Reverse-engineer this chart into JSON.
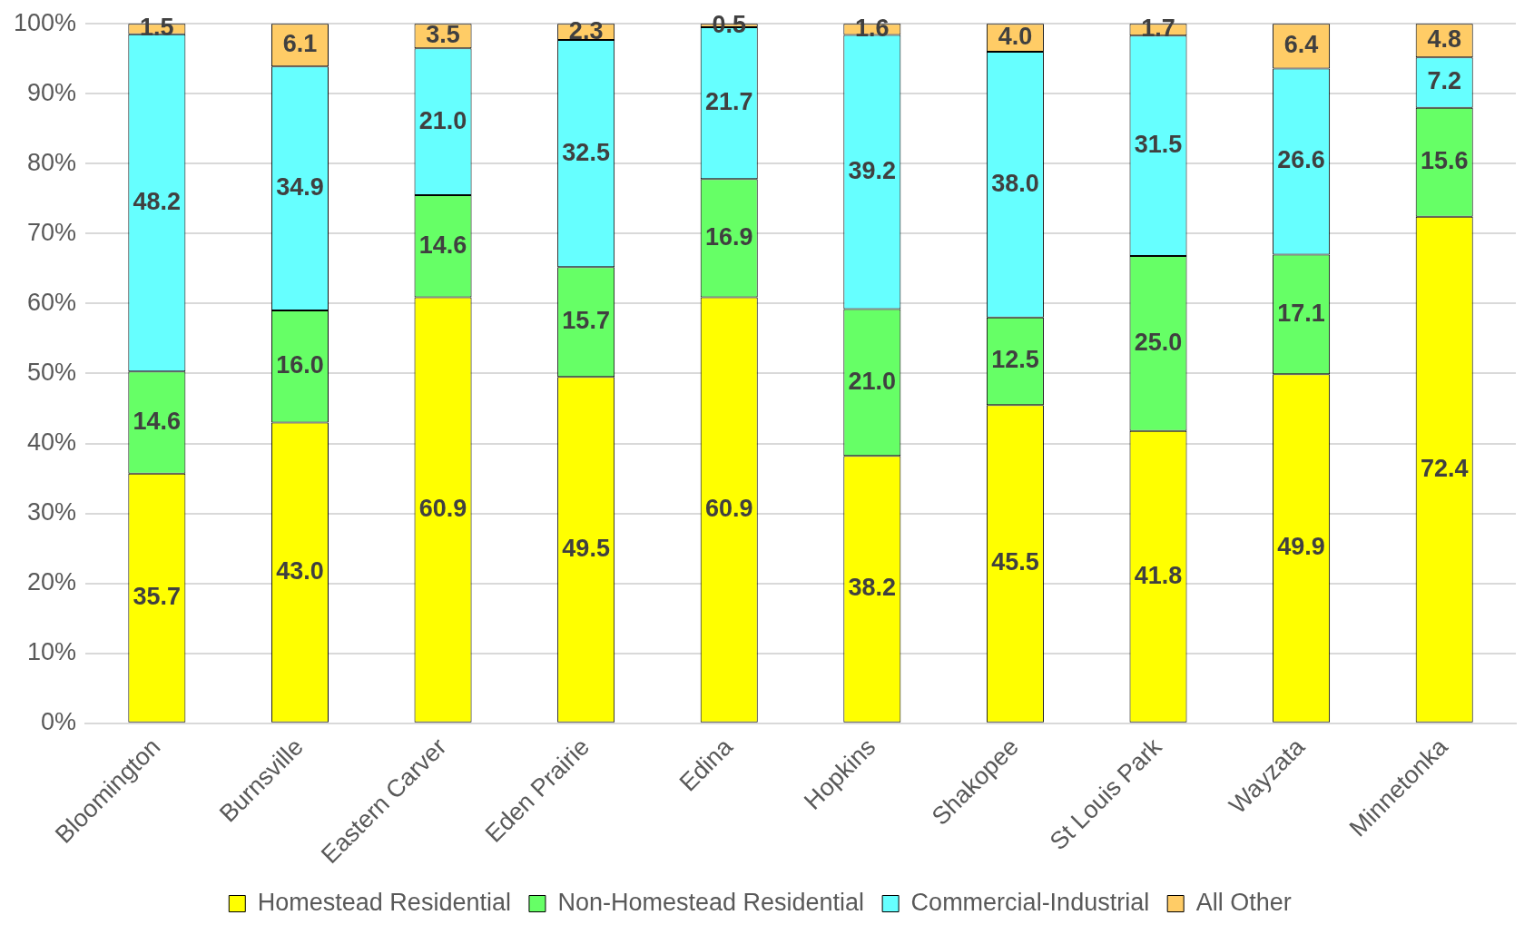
{
  "chart_data": {
    "type": "bar",
    "stacked": true,
    "categories": [
      "Bloomington",
      "Burnsville",
      "Eastern Carver",
      "Eden Prairie",
      "Edina",
      "Hopkins",
      "Shakopee",
      "St Louis Park",
      "Wayzata",
      "Minnetonka"
    ],
    "series": [
      {
        "name": "Homestead Residential",
        "color": "#ffff00",
        "values": [
          35.7,
          43.0,
          60.9,
          49.5,
          60.9,
          38.2,
          45.5,
          41.8,
          49.9,
          72.4
        ],
        "value_labels": [
          "35.7",
          "43.0",
          "60.9",
          "49.5",
          "60.9",
          "38.2",
          "45.5",
          "41.8",
          "49.9",
          "72.4"
        ]
      },
      {
        "name": "Non-Homestead Residential",
        "color": "#66ff66",
        "values": [
          14.6,
          16.0,
          14.6,
          15.7,
          16.9,
          21.0,
          12.5,
          25.0,
          17.1,
          15.6
        ],
        "value_labels": [
          "14.6",
          "16.0",
          "14.6",
          "15.7",
          "16.9",
          "21.0",
          "12.5",
          "25.0",
          "17.1",
          "15.6"
        ]
      },
      {
        "name": "Commercial-Industrial",
        "color": "#66ffff",
        "values": [
          48.2,
          34.9,
          21.0,
          32.5,
          21.7,
          39.2,
          38.0,
          31.5,
          26.6,
          7.2
        ],
        "value_labels": [
          "48.2",
          "34.9",
          "21.0",
          "32.5",
          "21.7",
          "39.2",
          "38.0",
          "31.5",
          "26.6",
          "7.2"
        ]
      },
      {
        "name": "All Other",
        "color": "#ffcc66",
        "values": [
          1.5,
          6.1,
          3.5,
          2.3,
          0.5,
          1.6,
          4.0,
          1.7,
          6.4,
          4.8
        ],
        "value_labels": [
          "1.5",
          "6.1",
          "3.5",
          "2.3",
          "0.5",
          "1.6",
          "4.0",
          "1.7",
          "6.4",
          "4.8"
        ]
      }
    ],
    "ylim": [
      0,
      100
    ],
    "yticks": [
      {
        "value": 0,
        "label": "0%"
      },
      {
        "value": 10,
        "label": "10%"
      },
      {
        "value": 20,
        "label": "20%"
      },
      {
        "value": 30,
        "label": "30%"
      },
      {
        "value": 40,
        "label": "40%"
      },
      {
        "value": 50,
        "label": "50%"
      },
      {
        "value": 60,
        "label": "60%"
      },
      {
        "value": 70,
        "label": "70%"
      },
      {
        "value": 80,
        "label": "80%"
      },
      {
        "value": 90,
        "label": "90%"
      },
      {
        "value": 100,
        "label": "100%"
      }
    ],
    "grid": "y",
    "legend": "bottom"
  }
}
